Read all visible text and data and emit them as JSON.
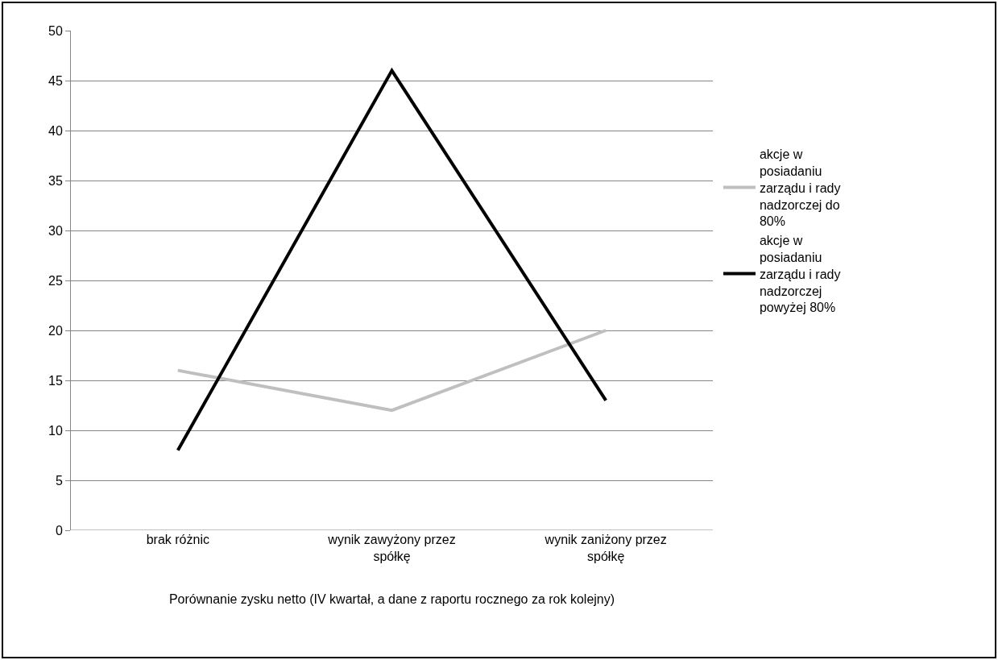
{
  "chart_data": {
    "type": "line",
    "xlabel": "Porównanie zysku netto (IV kwartał, a dane z raportu rocznego za rok kolejny)",
    "categories": [
      "brak różnic",
      "wynik zawyżony przez spółkę",
      "wynik zaniżony przez spółkę"
    ],
    "series": [
      {
        "name": "akcje w posiadaniu zarządu i rady nadzorczej do 80%",
        "color": "#bfbfbf",
        "values": [
          16,
          12,
          20
        ]
      },
      {
        "name": "akcje w posiadaniu zarządu i rady nadzorczej powyżej 80%",
        "color": "#000000",
        "values": [
          8,
          46,
          13
        ]
      }
    ],
    "ylim": [
      0,
      50
    ],
    "yticks": [
      0,
      5,
      10,
      15,
      20,
      25,
      30,
      35,
      40,
      45,
      50
    ],
    "grid": "y",
    "legend": "right",
    "marker": "none",
    "line_style": "solid"
  }
}
